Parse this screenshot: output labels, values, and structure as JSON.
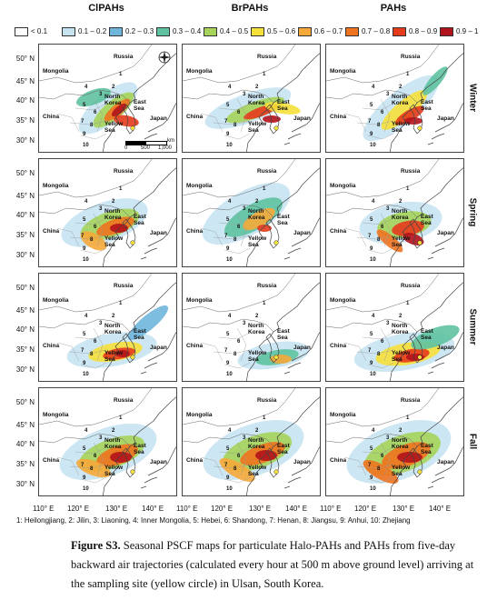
{
  "columns": [
    "ClPAHs",
    "BrPAHs",
    "PAHs"
  ],
  "legend": [
    "< 0.1",
    "0.1 – 0.2",
    "0.2 – 0.3",
    "0.3 – 0.4",
    "0.4 – 0.5",
    "0.5 – 0.6",
    "0.6 – 0.7",
    "0.7 – 0.8",
    "0.8 – 0.9",
    "0.9 – 1"
  ],
  "legend_colors": [
    "#ffffff",
    "#c6e3f2",
    "#6fb6dc",
    "#5fc2a0",
    "#a6d35a",
    "#f6e03a",
    "#f6a93a",
    "#f0731f",
    "#e63a1c",
    "#b2121b"
  ],
  "seasons": [
    "Winter",
    "Spring",
    "Summer",
    "Fall"
  ],
  "lat_labels": [
    "50° N",
    "45° N",
    "40° N",
    "35° N",
    "30° N"
  ],
  "lon_labels": [
    "110° E",
    "120° E",
    "130° E",
    "140° E"
  ],
  "map_labels": {
    "russia": "Russia",
    "mongolia": "Mongolia",
    "china": "China",
    "north_korea": "North Korea",
    "east_sea": "East Sea",
    "japan": "Japan",
    "yellow_sea": "Yellow Sea",
    "numbers": [
      "1",
      "2",
      "3",
      "4",
      "5",
      "6",
      "7",
      "8",
      "9",
      "10"
    ]
  },
  "scale": {
    "unit": "km",
    "ticks": [
      "0",
      "500",
      "1,000"
    ]
  },
  "footnote": "1: Heilongjiang, 2: Jilin, 3: Liaoning, 4: Inner Mongolia, 5: Hebei, 6: Shandong, 7: Henan, 8: Jiangsu, 9: Anhui, 10: Zhejiang",
  "caption": {
    "label": "Figure S3.",
    "text": "Seasonal PSCF maps for particulate Halo-PAHs and PAHs from five-day backward air trajectories (calculated every hour at 500 m above ground level) arriving at the sampling site (yellow circle) in Ulsan, South Korea."
  }
}
